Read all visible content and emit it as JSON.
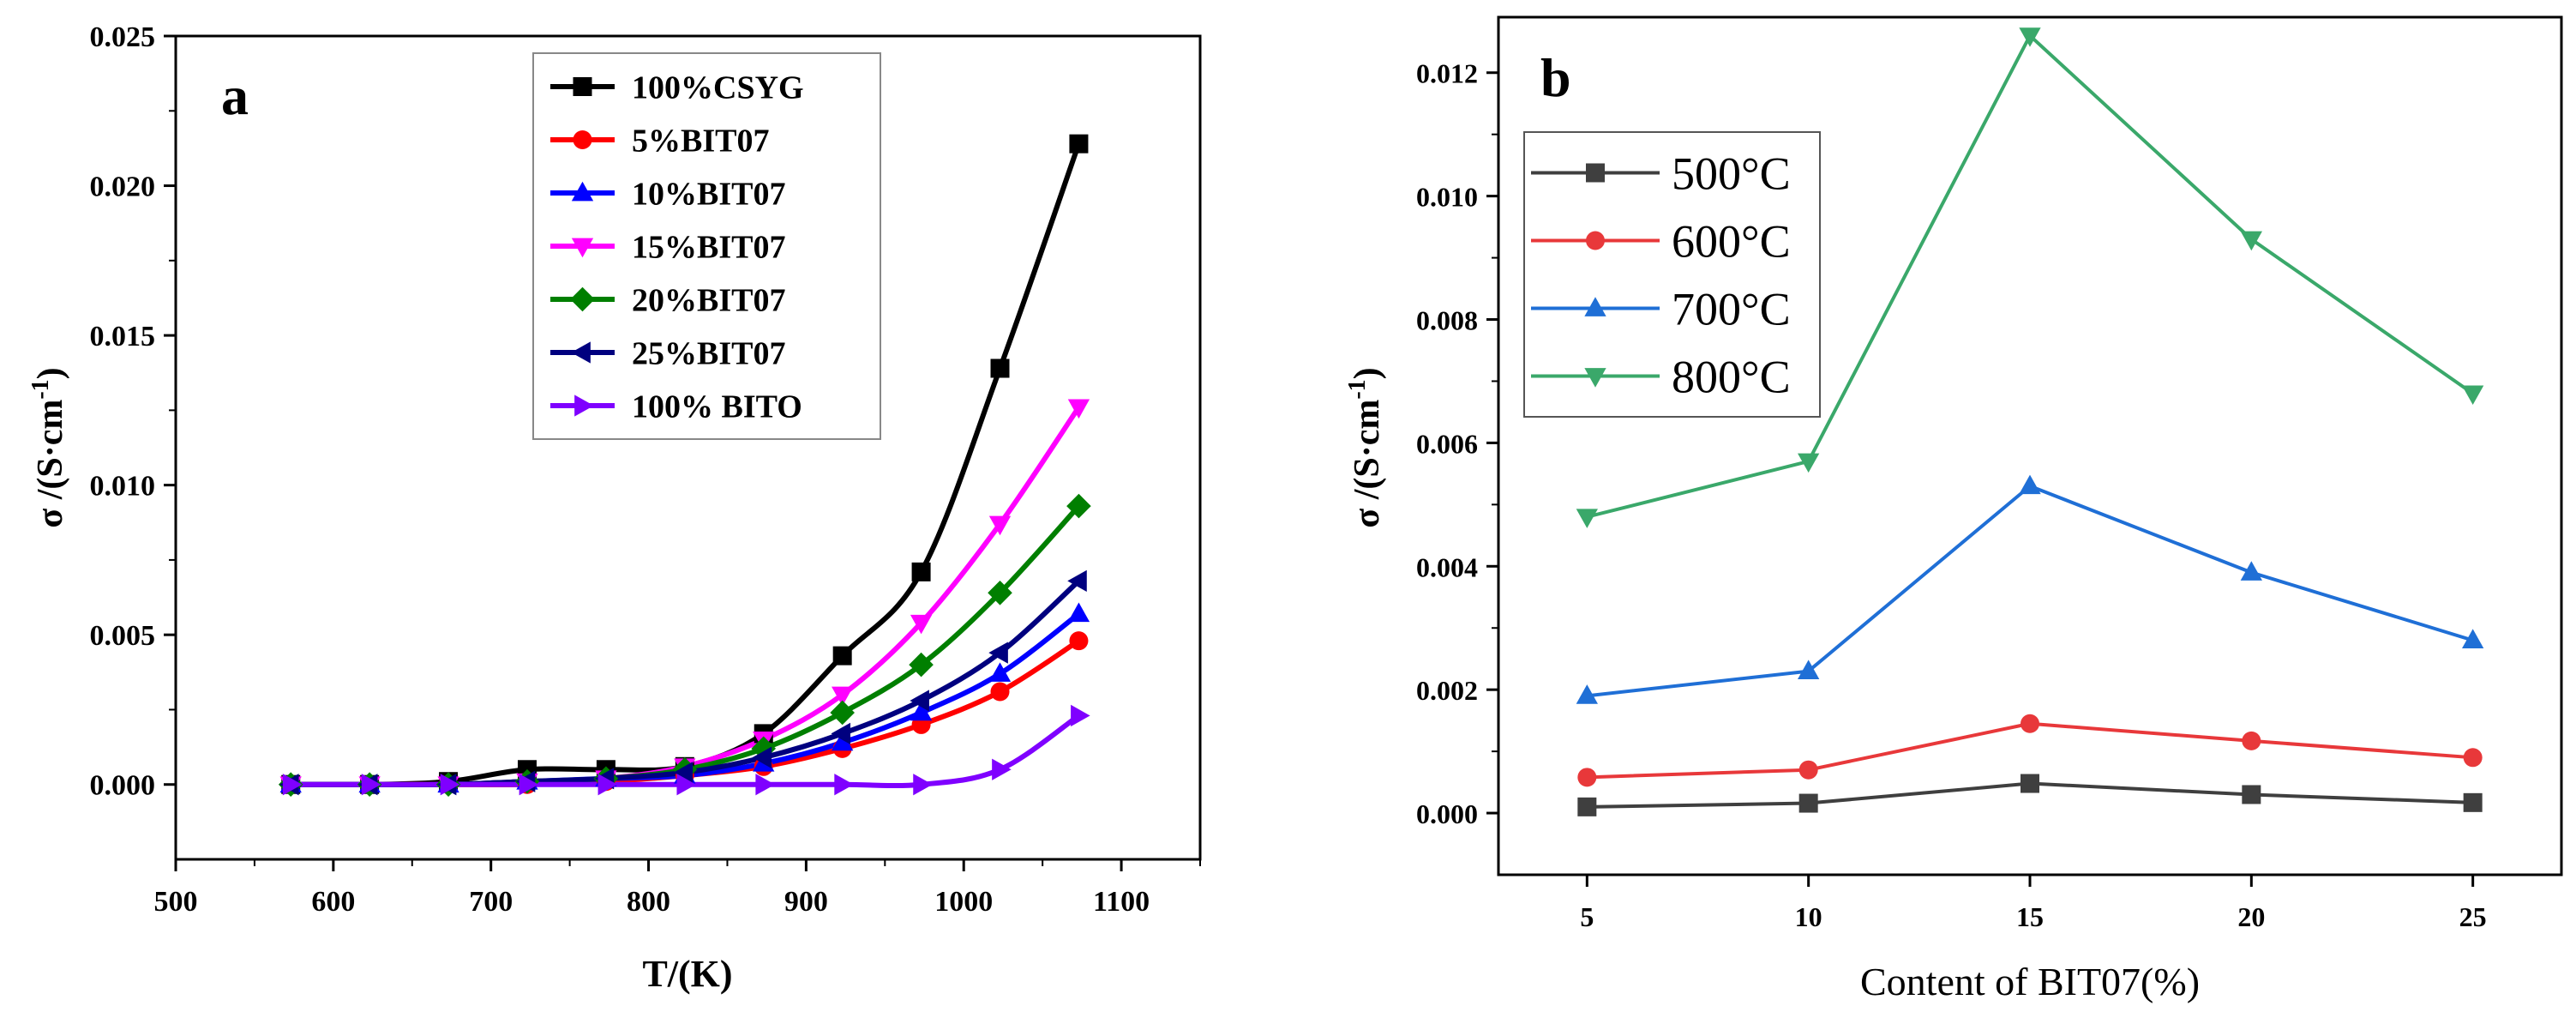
{
  "chart_data": [
    {
      "panel_label": "a",
      "type": "line",
      "xlabel": "T/(K)",
      "ylabel": "σ /(S·cm",
      "ylabel_sup": "-1",
      "ylabel_close": ")",
      "xlim": [
        500,
        1150
      ],
      "ylim": [
        -0.0025,
        0.025
      ],
      "xticks": [
        500,
        600,
        700,
        800,
        900,
        1000,
        1100
      ],
      "xtick_labels": [
        "500",
        "600",
        "700",
        "800",
        "900",
        "1000",
        "1100"
      ],
      "yticks": [
        0,
        0.005,
        0.01,
        0.015,
        0.02,
        0.025
      ],
      "ytick_labels": [
        "0.000",
        "0.005",
        "0.010",
        "0.015",
        "0.020",
        "0.025"
      ],
      "legend_position": "top-center",
      "x": [
        573,
        623,
        673,
        723,
        773,
        823,
        873,
        923,
        973,
        1023,
        1073
      ],
      "series": [
        {
          "name": "100%CSYG",
          "color": "#000000",
          "marker": "square",
          "values": [
            0.0,
            0.0,
            0.0001,
            0.0005,
            0.0005,
            0.0006,
            0.0017,
            0.0043,
            0.0071,
            0.0139,
            0.0214
          ]
        },
        {
          "name": "5%BIT07",
          "color": "#ff0000",
          "marker": "circle",
          "values": [
            0.0,
            0.0,
            0.0,
            0.0,
            0.0001,
            0.0003,
            0.0006,
            0.0012,
            0.002,
            0.0031,
            0.0048
          ]
        },
        {
          "name": "10%BIT07",
          "color": "#0000ff",
          "marker": "triangle-up",
          "values": [
            0.0,
            0.0,
            0.0,
            0.0001,
            0.0002,
            0.0003,
            0.0007,
            0.0014,
            0.0024,
            0.0037,
            0.0057
          ]
        },
        {
          "name": "15%BIT07",
          "color": "#ff00ff",
          "marker": "triangle-down",
          "values": [
            0.0,
            0.0,
            0.0,
            0.0001,
            0.0002,
            0.0006,
            0.0015,
            0.003,
            0.0054,
            0.0087,
            0.0126
          ]
        },
        {
          "name": "20%BIT07",
          "color": "#007f00",
          "marker": "diamond",
          "values": [
            0.0,
            0.0,
            0.0,
            0.0001,
            0.0002,
            0.0005,
            0.0012,
            0.0024,
            0.004,
            0.0064,
            0.0093
          ]
        },
        {
          "name": "25%BIT07",
          "color": "#00007f",
          "marker": "triangle-left",
          "values": [
            0.0,
            0.0,
            0.0,
            0.0001,
            0.0002,
            0.0004,
            0.0009,
            0.0017,
            0.0028,
            0.0044,
            0.0068
          ]
        },
        {
          "name": "100% BITO",
          "color": "#7f00ff",
          "marker": "triangle-right",
          "values": [
            0.0,
            0.0,
            0.0,
            0.0,
            0.0,
            0.0,
            0.0,
            0.0,
            0.0,
            0.0005,
            0.0023
          ]
        }
      ]
    },
    {
      "panel_label": "b",
      "type": "line",
      "xlabel": "Content of BIT07(%)",
      "ylabel": "σ /(S·cm",
      "ylabel_sup": "-1",
      "ylabel_close": ")",
      "xlim": [
        3,
        27
      ],
      "ylim": [
        -0.001,
        0.0129
      ],
      "xticks": [
        5,
        10,
        15,
        20,
        25
      ],
      "xtick_labels": [
        "5",
        "10",
        "15",
        "20",
        "25"
      ],
      "yticks": [
        0,
        0.002,
        0.004,
        0.006,
        0.008,
        0.01,
        0.012
      ],
      "ytick_labels": [
        "0.000",
        "0.002",
        "0.004",
        "0.006",
        "0.008",
        "0.010",
        "0.012"
      ],
      "legend_position": "top-left",
      "x": [
        5,
        10,
        15,
        20,
        25
      ],
      "series": [
        {
          "name": "500°C",
          "color": "#3f3f3f",
          "marker": "square",
          "values": [
            0.0001,
            0.00016,
            0.00048,
            0.0003,
            0.00017
          ]
        },
        {
          "name": "600°C",
          "color": "#e8383a",
          "marker": "circle",
          "values": [
            0.00058,
            0.0007,
            0.00145,
            0.00117,
            0.0009
          ]
        },
        {
          "name": "700°C",
          "color": "#1f6fd6",
          "marker": "triangle-up",
          "values": [
            0.0019,
            0.0023,
            0.0053,
            0.0039,
            0.0028
          ]
        },
        {
          "name": "800°C",
          "color": "#3aa86a",
          "marker": "triangle-down",
          "values": [
            0.0048,
            0.0057,
            0.0126,
            0.0093,
            0.0068
          ]
        }
      ]
    }
  ]
}
